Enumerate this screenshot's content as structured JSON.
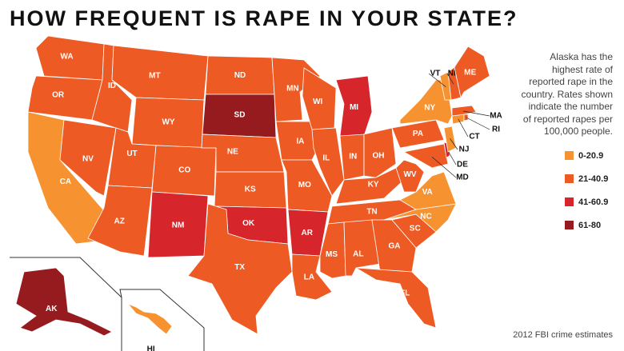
{
  "title": "HOW FREQUENT IS RAPE IN YOUR STATE?",
  "note": "Alaska has the highest rate of reported rape in the country. Rates shown indicate the number of reported rapes per 100,000 people.",
  "legend": [
    {
      "label": "0-20.9",
      "color": "#f6922f"
    },
    {
      "label": "21-40.9",
      "color": "#ee5a24"
    },
    {
      "label": "41-60.9",
      "color": "#d7262b"
    },
    {
      "label": "61-80",
      "color": "#951b1e"
    }
  ],
  "states": [
    {
      "label": "WA",
      "color": "#ee5a24"
    },
    {
      "label": "OR",
      "color": "#ee5a24"
    },
    {
      "label": "CA",
      "color": "#f6922f"
    },
    {
      "label": "NV",
      "color": "#ee5a24"
    },
    {
      "label": "ID",
      "color": "#ee5a24"
    },
    {
      "label": "MT",
      "color": "#ee5a24"
    },
    {
      "label": "WY",
      "color": "#ee5a24"
    },
    {
      "label": "UT",
      "color": "#ee5a24"
    },
    {
      "label": "AZ",
      "color": "#ee5a24"
    },
    {
      "label": "CO",
      "color": "#ee5a24"
    },
    {
      "label": "NM",
      "color": "#d7262b"
    },
    {
      "label": "ND",
      "color": "#ee5a24"
    },
    {
      "label": "SD",
      "color": "#951b1e"
    },
    {
      "label": "NE",
      "color": "#ee5a24"
    },
    {
      "label": "KS",
      "color": "#ee5a24"
    },
    {
      "label": "OK",
      "color": "#d7262b"
    },
    {
      "label": "TX",
      "color": "#ee5a24"
    },
    {
      "label": "MN",
      "color": "#ee5a24"
    },
    {
      "label": "IA",
      "color": "#ee5a24"
    },
    {
      "label": "MO",
      "color": "#ee5a24"
    },
    {
      "label": "AR",
      "color": "#d7262b"
    },
    {
      "label": "LA",
      "color": "#ee5a24"
    },
    {
      "label": "WI",
      "color": "#ee5a24"
    },
    {
      "label": "IL",
      "color": "#ee5a24"
    },
    {
      "label": "MI",
      "color": "#d7262b"
    },
    {
      "label": "IN",
      "color": "#ee5a24"
    },
    {
      "label": "OH",
      "color": "#ee5a24"
    },
    {
      "label": "KY",
      "color": "#ee5a24"
    },
    {
      "label": "TN",
      "color": "#ee5a24"
    },
    {
      "label": "MS",
      "color": "#ee5a24"
    },
    {
      "label": "AL",
      "color": "#ee5a24"
    },
    {
      "label": "GA",
      "color": "#ee5a24"
    },
    {
      "label": "FL",
      "color": "#ee5a24"
    },
    {
      "label": "SC",
      "color": "#ee5a24"
    },
    {
      "label": "NC",
      "color": "#f6922f"
    },
    {
      "label": "VA",
      "color": "#f6922f"
    },
    {
      "label": "WV",
      "color": "#ee5a24"
    },
    {
      "label": "PA",
      "color": "#ee5a24"
    },
    {
      "label": "NY",
      "color": "#f6922f"
    },
    {
      "label": "MD",
      "color": "#ee5a24"
    },
    {
      "label": "DE",
      "color": "#d7262b"
    },
    {
      "label": "NJ",
      "color": "#f6922f"
    },
    {
      "label": "CT",
      "color": "#f6922f"
    },
    {
      "label": "RI",
      "color": "#ee5a24"
    },
    {
      "label": "MA",
      "color": "#ee5a24"
    },
    {
      "label": "VT",
      "color": "#f6922f"
    },
    {
      "label": "NH",
      "color": "#ee5a24"
    },
    {
      "label": "ME",
      "color": "#ee5a24"
    },
    {
      "label": "AK",
      "color": "#951b1e"
    },
    {
      "label": "HI",
      "color": "#f6922f"
    }
  ],
  "source": "2012 FBI crime estimates"
}
